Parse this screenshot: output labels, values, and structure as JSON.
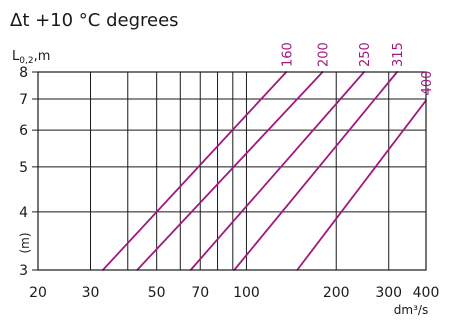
{
  "chart_data": {
    "type": "line",
    "title": "Δt +10 °C degrees",
    "ylabel": "L0,2,m",
    "ylabel_parts": {
      "main": "L",
      "sub": "0,2",
      "suffix": ",m"
    },
    "ylabel_secondary": "(m)",
    "xlabel": "dm³/s",
    "x_scale": "log",
    "y_scale": "log",
    "xlim": [
      20,
      400
    ],
    "ylim": [
      3,
      8
    ],
    "x_ticks": [
      20,
      30,
      50,
      70,
      100,
      200,
      300,
      400
    ],
    "x_tick_labels": [
      "20",
      "30",
      "50",
      "70",
      "100",
      "200",
      "300",
      "400"
    ],
    "x_grid": [
      30,
      40,
      50,
      60,
      70,
      80,
      90,
      100,
      200,
      300,
      400
    ],
    "y_ticks": [
      3,
      4,
      5,
      6,
      7,
      8
    ],
    "y_tick_labels": [
      "3",
      "4",
      "5",
      "6",
      "7",
      "8"
    ],
    "grid": true,
    "line_color": "#a0197f",
    "series": [
      {
        "name": "160",
        "points": [
          [
            33,
            3.0
          ],
          [
            136,
            8.0
          ]
        ]
      },
      {
        "name": "200",
        "points": [
          [
            43,
            3.0
          ],
          [
            180,
            8.0
          ]
        ]
      },
      {
        "name": "250",
        "points": [
          [
            65,
            3.0
          ],
          [
            248,
            8.0
          ]
        ]
      },
      {
        "name": "315",
        "points": [
          [
            91,
            3.0
          ],
          [
            320,
            8.0
          ]
        ]
      },
      {
        "name": "400",
        "points": [
          [
            148,
            3.0
          ],
          [
            400,
            6.95
          ]
        ]
      }
    ]
  }
}
